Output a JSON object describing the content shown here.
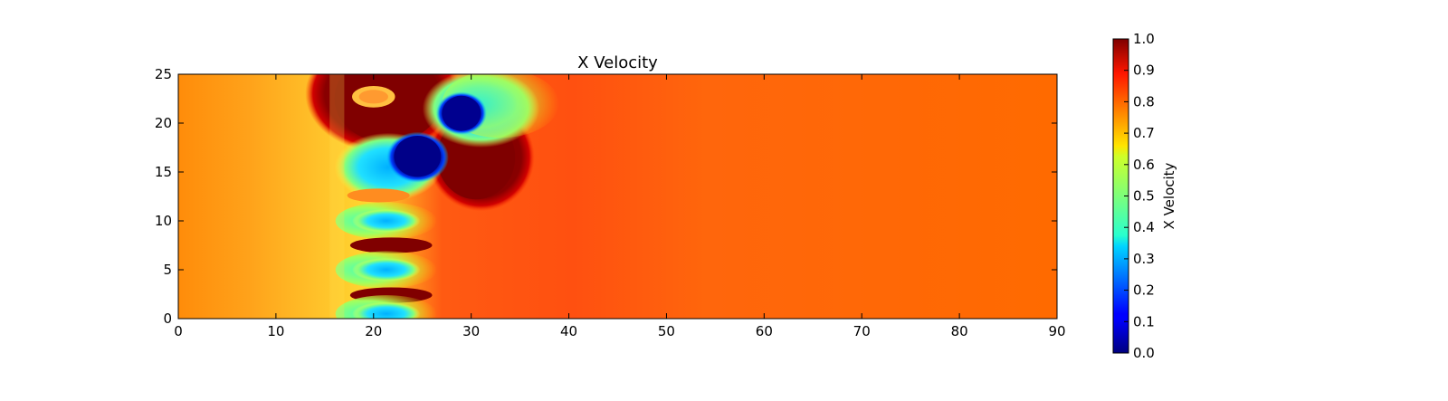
{
  "chart_data": {
    "type": "heatmap",
    "title": "X Velocity",
    "xlabel": "",
    "ylabel": "",
    "xlim": [
      0,
      90
    ],
    "ylim": [
      0,
      25
    ],
    "xticks": [
      0,
      10,
      20,
      30,
      40,
      50,
      60,
      70,
      80,
      90
    ],
    "yticks": [
      0,
      5,
      10,
      15,
      20,
      25
    ],
    "grid": false,
    "colormap": "jet",
    "colorbar": {
      "label": "X Velocity",
      "range": [
        0.0,
        1.0
      ],
      "ticks": [
        "0.0",
        "0.1",
        "0.2",
        "0.3",
        "0.4",
        "0.5",
        "0.6",
        "0.7",
        "0.8",
        "0.9",
        "1.0"
      ],
      "location": "right"
    },
    "field_description": {
      "free_stream_value": 0.82,
      "features": [
        {
          "kind": "low-velocity core",
          "x": 24.5,
          "y": 16.5,
          "value": 0.0
        },
        {
          "kind": "low-velocity core",
          "x": 29,
          "y": 21,
          "value": 0.0
        },
        {
          "kind": "high-velocity lobe",
          "x": 31,
          "y": 16,
          "value": 1.0
        },
        {
          "kind": "high-velocity lobe",
          "x": 20,
          "y": 22.5,
          "value": 1.0
        },
        {
          "kind": "wake band",
          "x": 21,
          "y": 10,
          "value": 0.35
        },
        {
          "kind": "wake band",
          "x": 21,
          "y": 5,
          "value": 0.35
        },
        {
          "kind": "wake band",
          "x": 21,
          "y": 0.5,
          "value": 0.4
        },
        {
          "kind": "high streak",
          "x": 21.5,
          "y": 7.5,
          "value": 1.0
        },
        {
          "kind": "high streak",
          "x": 21.5,
          "y": 2.5,
          "value": 1.0
        }
      ]
    }
  }
}
